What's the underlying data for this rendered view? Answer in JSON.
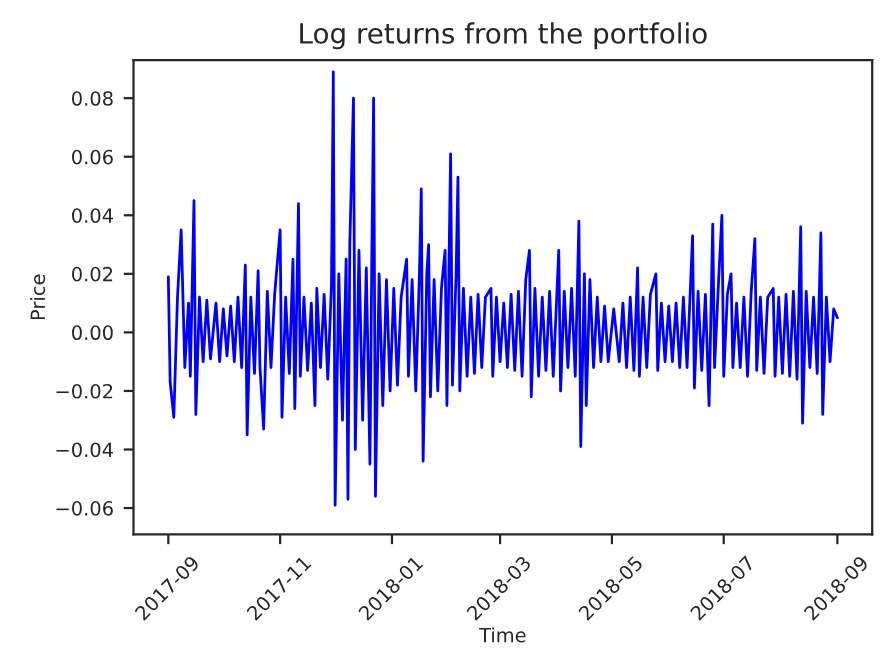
{
  "chart_data": {
    "type": "line",
    "title": "Log returns from the portfolio",
    "xlabel": "Time",
    "ylabel": "Price",
    "xlim": [
      "2017-08-13",
      "2018-09-20"
    ],
    "xticks": [
      "2017-09",
      "2017-11",
      "2018-01",
      "2018-03",
      "2018-05",
      "2018-07",
      "2018-09"
    ],
    "ylim": [
      -0.069,
      0.093
    ],
    "yticks": [
      {
        "value": -0.06,
        "label": "−0.06"
      },
      {
        "value": -0.04,
        "label": "−0.04"
      },
      {
        "value": -0.02,
        "label": "−0.02"
      },
      {
        "value": 0.0,
        "label": "0.00"
      },
      {
        "value": 0.02,
        "label": "0.02"
      },
      {
        "value": 0.04,
        "label": "0.04"
      },
      {
        "value": 0.06,
        "label": "0.06"
      },
      {
        "value": 0.08,
        "label": "0.08"
      }
    ],
    "grid": false,
    "marker": "none",
    "line_style": "solid",
    "series": [
      {
        "color": "#0000ff",
        "x": [
          "2017-09-01",
          "2017-09-02",
          "2017-09-04",
          "2017-09-06",
          "2017-09-08",
          "2017-09-10",
          "2017-09-12",
          "2017-09-13",
          "2017-09-15",
          "2017-09-16",
          "2017-09-18",
          "2017-09-20",
          "2017-09-22",
          "2017-09-24",
          "2017-09-27",
          "2017-09-29",
          "2017-10-01",
          "2017-10-03",
          "2017-10-05",
          "2017-10-07",
          "2017-10-09",
          "2017-10-11",
          "2017-10-13",
          "2017-10-14",
          "2017-10-16",
          "2017-10-18",
          "2017-10-20",
          "2017-10-21",
          "2017-10-23",
          "2017-10-25",
          "2017-10-27",
          "2017-10-29",
          "2017-11-01",
          "2017-11-02",
          "2017-11-04",
          "2017-11-06",
          "2017-11-08",
          "2017-11-09",
          "2017-11-11",
          "2017-11-12",
          "2017-11-14",
          "2017-11-16",
          "2017-11-18",
          "2017-11-20",
          "2017-11-21",
          "2017-11-23",
          "2017-11-25",
          "2017-11-27",
          "2017-11-29",
          "2017-11-30",
          "2017-12-01",
          "2017-12-03",
          "2017-12-05",
          "2017-12-07",
          "2017-12-08",
          "2017-12-09",
          "2017-12-11",
          "2017-12-12",
          "2017-12-14",
          "2017-12-16",
          "2017-12-18",
          "2017-12-20",
          "2017-12-21",
          "2017-12-22",
          "2017-12-23",
          "2017-12-25",
          "2017-12-27",
          "2017-12-29",
          "2017-12-31",
          "2018-01-02",
          "2018-01-04",
          "2018-01-06",
          "2018-01-09",
          "2018-01-10",
          "2018-01-12",
          "2018-01-14",
          "2018-01-16",
          "2018-01-17",
          "2018-01-18",
          "2018-01-20",
          "2018-01-21",
          "2018-01-22",
          "2018-01-24",
          "2018-01-26",
          "2018-01-28",
          "2018-01-30",
          "2018-01-31",
          "2018-02-02",
          "2018-02-03",
          "2018-02-05",
          "2018-02-06",
          "2018-02-07",
          "2018-02-09",
          "2018-02-11",
          "2018-02-13",
          "2018-02-15",
          "2018-02-17",
          "2018-02-19",
          "2018-02-21",
          "2018-02-24",
          "2018-02-25",
          "2018-02-27",
          "2018-03-01",
          "2018-03-03",
          "2018-03-05",
          "2018-03-07",
          "2018-03-09",
          "2018-03-11",
          "2018-03-13",
          "2018-03-15",
          "2018-03-17",
          "2018-03-18",
          "2018-03-20",
          "2018-03-22",
          "2018-03-24",
          "2018-03-26",
          "2018-03-28",
          "2018-03-30",
          "2018-04-02",
          "2018-04-03",
          "2018-04-05",
          "2018-04-07",
          "2018-04-09",
          "2018-04-11",
          "2018-04-13",
          "2018-04-14",
          "2018-04-16",
          "2018-04-17",
          "2018-04-19",
          "2018-04-21",
          "2018-04-23",
          "2018-04-25",
          "2018-04-27",
          "2018-04-29",
          "2018-05-02",
          "2018-05-05",
          "2018-05-07",
          "2018-05-09",
          "2018-05-11",
          "2018-05-13",
          "2018-05-15",
          "2018-05-16",
          "2018-05-18",
          "2018-05-20",
          "2018-05-22",
          "2018-05-25",
          "2018-05-26",
          "2018-05-28",
          "2018-05-30",
          "2018-06-01",
          "2018-06-03",
          "2018-06-05",
          "2018-06-07",
          "2018-06-09",
          "2018-06-11",
          "2018-06-14",
          "2018-06-15",
          "2018-06-17",
          "2018-06-19",
          "2018-06-21",
          "2018-06-23",
          "2018-06-25",
          "2018-06-26",
          "2018-06-28",
          "2018-06-30",
          "2018-07-01",
          "2018-07-03",
          "2018-07-05",
          "2018-07-06",
          "2018-07-08",
          "2018-07-10",
          "2018-07-12",
          "2018-07-14",
          "2018-07-16",
          "2018-07-18",
          "2018-07-19",
          "2018-07-21",
          "2018-07-23",
          "2018-07-25",
          "2018-07-28",
          "2018-07-29",
          "2018-07-31",
          "2018-08-02",
          "2018-08-04",
          "2018-08-06",
          "2018-08-08",
          "2018-08-10",
          "2018-08-12",
          "2018-08-13",
          "2018-08-15",
          "2018-08-17",
          "2018-08-19",
          "2018-08-21",
          "2018-08-23",
          "2018-08-24",
          "2018-08-26",
          "2018-08-28",
          "2018-08-30",
          "2018-09-01"
        ],
        "values": [
          0.019,
          -0.017,
          -0.029,
          0.012,
          0.035,
          -0.012,
          0.01,
          -0.015,
          0.045,
          -0.028,
          0.012,
          -0.01,
          0.011,
          -0.009,
          0.01,
          -0.01,
          0.008,
          -0.008,
          0.009,
          -0.01,
          0.012,
          -0.012,
          0.023,
          -0.035,
          0.012,
          -0.014,
          0.021,
          -0.012,
          -0.033,
          0.014,
          -0.012,
          0.013,
          0.035,
          -0.029,
          0.012,
          -0.014,
          0.025,
          -0.026,
          0.044,
          -0.015,
          0.012,
          -0.013,
          0.01,
          -0.025,
          0.015,
          -0.012,
          0.013,
          -0.016,
          0.016,
          0.089,
          -0.059,
          0.02,
          -0.03,
          0.025,
          -0.057,
          0.03,
          0.08,
          -0.04,
          0.028,
          -0.03,
          0.022,
          -0.045,
          0.025,
          0.08,
          -0.056,
          0.02,
          -0.025,
          0.018,
          -0.02,
          0.015,
          -0.018,
          0.012,
          0.025,
          -0.015,
          0.018,
          -0.02,
          0.02,
          0.049,
          -0.044,
          0.02,
          0.03,
          -0.022,
          0.018,
          -0.02,
          0.015,
          0.028,
          -0.025,
          0.061,
          -0.018,
          0.02,
          0.053,
          -0.02,
          0.015,
          -0.015,
          0.012,
          -0.014,
          0.013,
          -0.012,
          0.012,
          0.015,
          -0.015,
          0.012,
          -0.01,
          0.01,
          -0.012,
          0.013,
          -0.013,
          0.014,
          -0.015,
          0.018,
          0.028,
          -0.022,
          0.015,
          -0.015,
          0.012,
          -0.013,
          0.014,
          -0.015,
          0.028,
          -0.02,
          0.014,
          -0.012,
          0.015,
          -0.015,
          0.038,
          -0.039,
          0.02,
          -0.025,
          0.018,
          -0.012,
          0.012,
          -0.01,
          0.009,
          -0.01,
          0.008,
          -0.01,
          0.01,
          -0.012,
          0.012,
          -0.013,
          0.022,
          -0.015,
          0.012,
          -0.012,
          0.013,
          0.02,
          -0.013,
          0.01,
          -0.01,
          0.009,
          -0.01,
          0.01,
          -0.012,
          0.012,
          -0.012,
          0.033,
          -0.019,
          0.014,
          -0.013,
          0.013,
          -0.025,
          0.037,
          -0.012,
          0.015,
          0.04,
          -0.015,
          0.013,
          0.02,
          -0.012,
          0.01,
          -0.012,
          0.012,
          -0.015,
          0.014,
          0.032,
          -0.013,
          0.012,
          -0.014,
          0.012,
          0.015,
          -0.015,
          0.012,
          -0.014,
          0.013,
          -0.015,
          0.014,
          -0.016,
          0.036,
          -0.031,
          0.014,
          -0.012,
          0.012,
          -0.014,
          0.034,
          -0.028,
          0.012,
          -0.01,
          0.008,
          0.005
        ]
      }
    ]
  }
}
